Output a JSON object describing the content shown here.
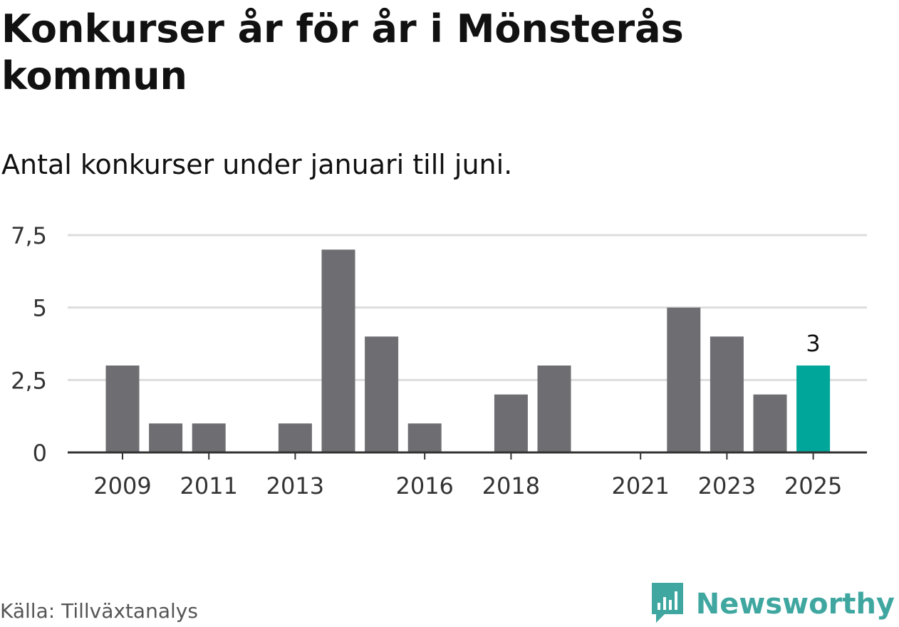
{
  "title": "Konkurser år för år i Mönsterås kommun",
  "subtitle": "Antal konkurser under januari till juni.",
  "source": "Källa: Tillväxtanalys",
  "brand": {
    "name": "Newsworthy",
    "icon": "newsworthy-logo-icon",
    "color": "#3fa7a0"
  },
  "colors": {
    "bar": "#6e6d72",
    "highlight": "#00a69a",
    "grid": "#dddddd",
    "axis": "#333333",
    "text": "#333333"
  },
  "chart_data": {
    "type": "bar",
    "categories": [
      "2009",
      "2010",
      "2011",
      "2012",
      "2013",
      "2014",
      "2015",
      "2016",
      "2017",
      "2018",
      "2019",
      "2020",
      "2021",
      "2022",
      "2023",
      "2024",
      "2025"
    ],
    "values": [
      3,
      1,
      1,
      0,
      1,
      7,
      4,
      1,
      0,
      2,
      3,
      0,
      0,
      5,
      4,
      2,
      3
    ],
    "tick_labels": [
      "2009",
      "2011",
      "2013",
      "2016",
      "2018",
      "2021",
      "2023",
      "2025"
    ],
    "y_ticks": [
      "0",
      "2,5",
      "5",
      "7,5"
    ],
    "ylim": [
      0,
      7.5
    ],
    "highlight_category": "2025",
    "highlight_label": "3",
    "grid": true,
    "xlabel": "",
    "ylabel": ""
  }
}
